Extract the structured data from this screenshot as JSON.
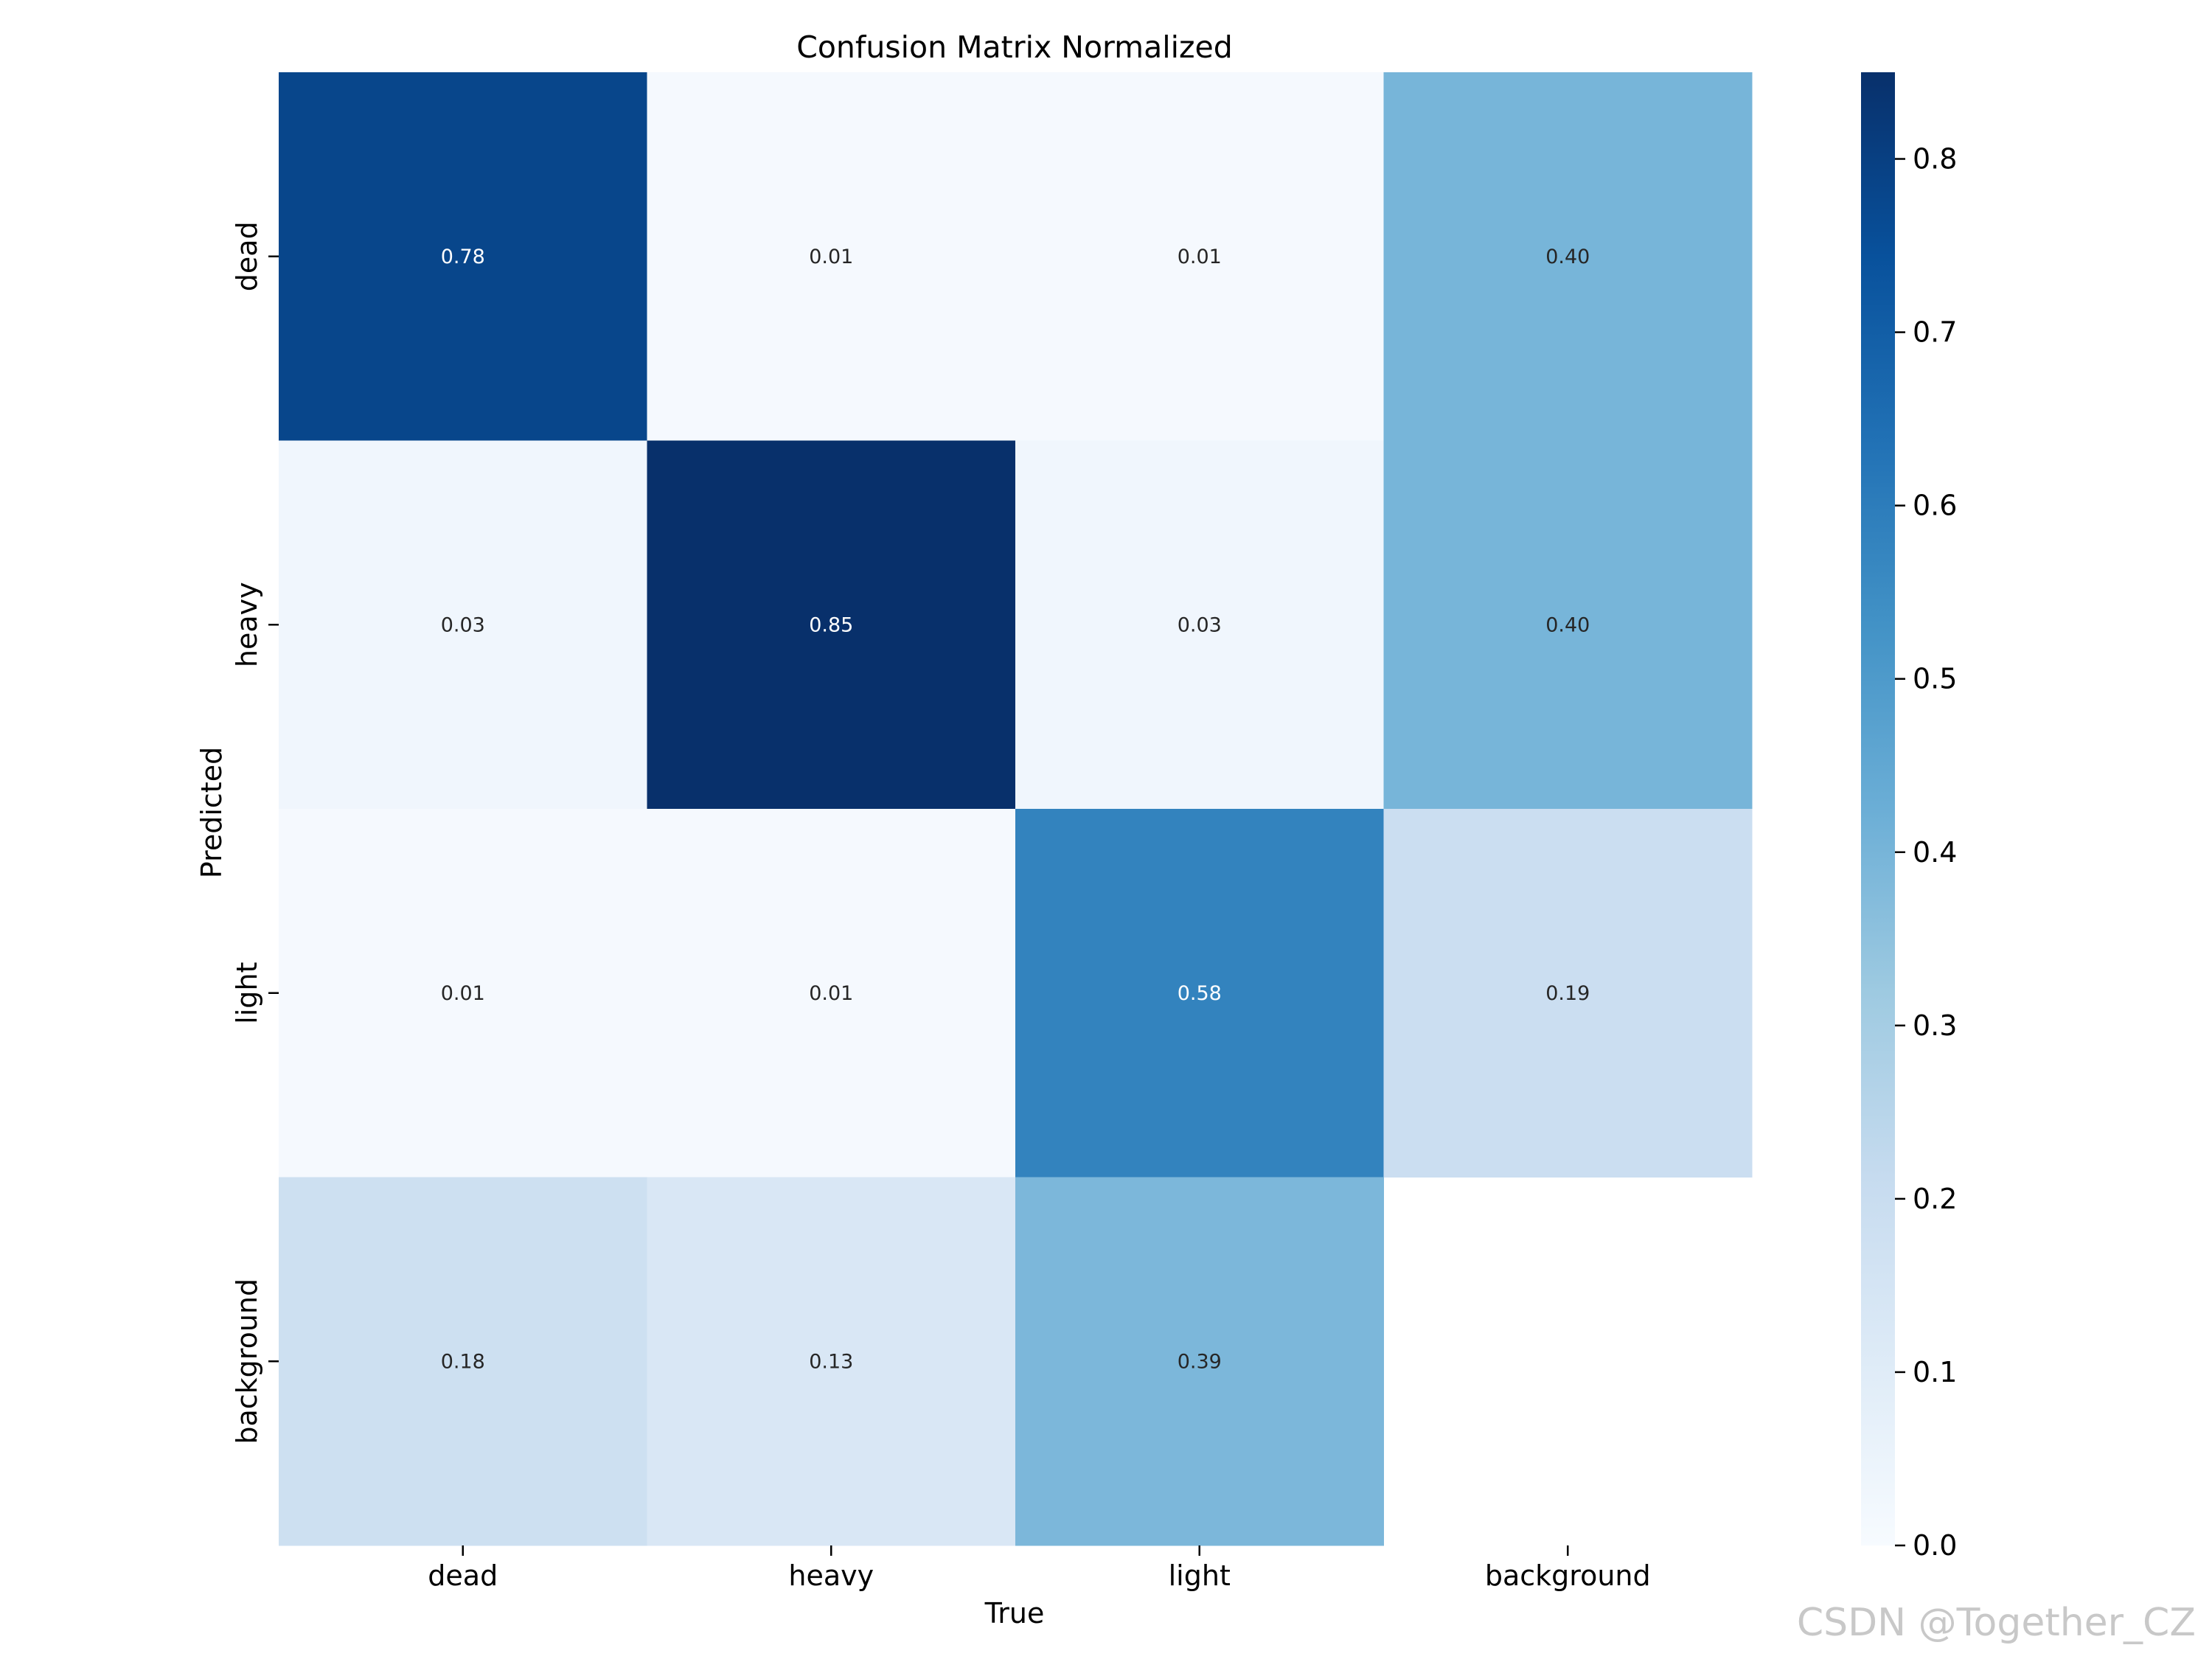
{
  "chart_data": {
    "type": "heatmap",
    "title": "Confusion Matrix Normalized",
    "xlabel": "True",
    "ylabel": "Predicted",
    "x_categories": [
      "dead",
      "heavy",
      "light",
      "background"
    ],
    "y_categories": [
      "dead",
      "heavy",
      "light",
      "background"
    ],
    "values": [
      [
        0.78,
        0.01,
        0.01,
        0.4
      ],
      [
        0.03,
        0.85,
        0.03,
        0.4
      ],
      [
        0.01,
        0.01,
        0.58,
        0.19
      ],
      [
        0.18,
        0.13,
        0.39,
        null
      ]
    ],
    "cell_labels": [
      [
        "0.78",
        "0.01",
        "0.01",
        "0.40"
      ],
      [
        "0.03",
        "0.85",
        "0.03",
        "0.40"
      ],
      [
        "0.01",
        "0.01",
        "0.58",
        "0.19"
      ],
      [
        "0.18",
        "0.13",
        "0.39",
        ""
      ]
    ],
    "colormap": "Blues",
    "colorbar": {
      "range": [
        0,
        0.85
      ],
      "ticks": [
        0.0,
        0.1,
        0.2,
        0.3,
        0.4,
        0.5,
        0.6,
        0.7,
        0.8
      ],
      "tick_labels": [
        "0.0",
        "0.1",
        "0.2",
        "0.3",
        "0.4",
        "0.5",
        "0.6",
        "0.7",
        "0.8"
      ]
    }
  },
  "watermark": "CSDN @Together_CZ"
}
